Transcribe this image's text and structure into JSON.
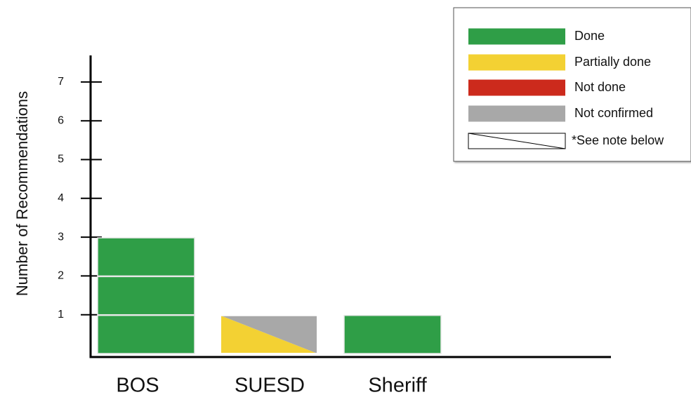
{
  "chart_data": {
    "type": "bar",
    "title": "",
    "xlabel": "",
    "ylabel": "Number of Recommendations",
    "ylim": [
      0,
      7
    ],
    "yticks": [
      1,
      2,
      3,
      4,
      5,
      6,
      7
    ],
    "grid": false,
    "legend_position": "top-right",
    "categories": [
      "BOS",
      "SUESD",
      "Sheriff"
    ],
    "stacks": [
      {
        "category": "BOS",
        "segments": [
          {
            "status": "done",
            "value": 1
          },
          {
            "status": "done",
            "value": 1
          },
          {
            "status": "done",
            "value": 1
          }
        ]
      },
      {
        "category": "SUESD",
        "segments": [
          {
            "status": "split",
            "value": 1,
            "parts": [
              "partially",
              "not_confirmed"
            ]
          }
        ]
      },
      {
        "category": "Sheriff",
        "segments": [
          {
            "status": "done",
            "value": 1
          }
        ]
      }
    ],
    "legend": [
      {
        "key": "done",
        "label": "Done",
        "color": "#2f9e47"
      },
      {
        "key": "partially",
        "label": "Partially done",
        "color": "#f3d133"
      },
      {
        "key": "not_done",
        "label": "Not done",
        "color": "#cc2a1c"
      },
      {
        "key": "not_confirmed",
        "label": "Not confirmed",
        "color": "#a8a8a8"
      },
      {
        "key": "note",
        "label": "*See note below",
        "color": "#ffffff"
      }
    ]
  }
}
